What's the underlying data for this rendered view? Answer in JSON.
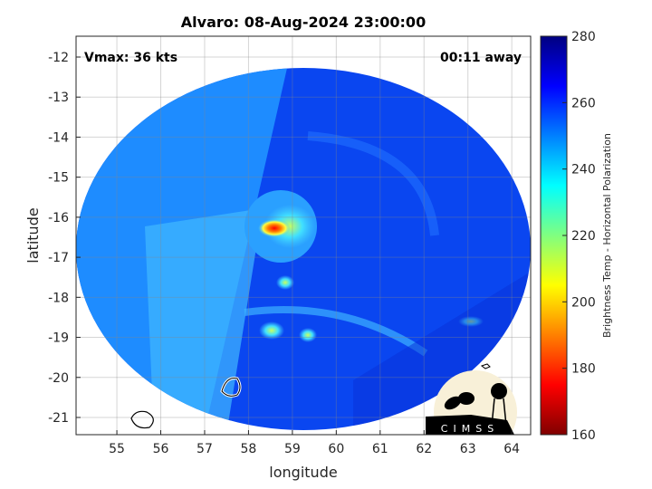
{
  "title": "Alvaro: 08-Aug-2024 23:00:00",
  "vmax_label": "Vmax: 36 kts",
  "away_label": "00:11 away",
  "xlabel": "longitude",
  "ylabel": "latitude",
  "x_ticks": [
    "55",
    "56",
    "57",
    "58",
    "59",
    "60",
    "61",
    "62",
    "63",
    "64"
  ],
  "y_ticks": [
    "-12",
    "-13",
    "-14",
    "-15",
    "-16",
    "-17",
    "-18",
    "-19",
    "-20",
    "-21"
  ],
  "x_range": [
    54.07,
    64.43
  ],
  "y_range": [
    -21.43,
    -11.48
  ],
  "colorbar": {
    "label": "Brightness Temp - Horizontal Polarization",
    "ticks": [
      "160",
      "180",
      "200",
      "220",
      "240",
      "260",
      "280"
    ],
    "range": [
      160,
      280
    ],
    "colormap": [
      "#800000",
      "#ff0000",
      "#ff8000",
      "#ffff00",
      "#80ff80",
      "#00ffff",
      "#0080ff",
      "#0000ff",
      "#000080"
    ]
  },
  "logo": {
    "text": "CIMSS"
  },
  "colors": {
    "background_blue": "#0a46f0",
    "light_blue": "#1e8cff",
    "cyan": "#40c8ff",
    "hot": "#ff2000"
  }
}
